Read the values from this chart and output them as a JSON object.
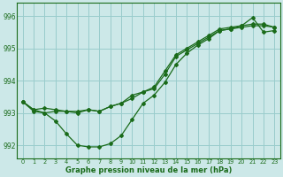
{
  "title": "Graphe pression niveau de la mer (hPa)",
  "bg_color": "#cce8e8",
  "grid_color": "#99cccc",
  "line_color": "#1a6b1a",
  "xlim": [
    -0.5,
    23.5
  ],
  "ylim": [
    991.6,
    996.4
  ],
  "ytick_values": [
    992,
    993,
    994,
    995,
    996
  ],
  "ytick_labels": [
    "992",
    "993",
    "994",
    "995",
    "996"
  ],
  "xticks": [
    0,
    1,
    2,
    3,
    4,
    5,
    6,
    7,
    8,
    9,
    10,
    11,
    12,
    13,
    14,
    15,
    16,
    17,
    18,
    19,
    20,
    21,
    22,
    23
  ],
  "series_main": [
    993.35,
    993.1,
    993.0,
    992.75,
    992.35,
    992.0,
    991.95,
    991.95,
    992.05,
    992.3,
    992.8,
    993.3,
    993.55,
    993.95,
    994.5,
    994.85,
    995.1,
    995.3,
    995.55,
    995.6,
    995.7,
    995.95,
    995.5,
    995.55
  ],
  "series_upper1": [
    993.35,
    993.1,
    993.15,
    993.1,
    993.05,
    993.05,
    993.1,
    993.05,
    993.2,
    993.3,
    993.45,
    993.65,
    993.75,
    994.2,
    994.75,
    994.95,
    995.15,
    995.35,
    995.55,
    995.6,
    995.65,
    995.7,
    995.7,
    995.65
  ],
  "series_upper2": [
    993.35,
    993.05,
    993.0,
    993.05,
    993.05,
    993.0,
    993.1,
    993.05,
    993.2,
    993.3,
    993.55,
    993.65,
    993.8,
    994.3,
    994.8,
    995.0,
    995.2,
    995.4,
    995.6,
    995.65,
    995.7,
    995.75,
    995.75,
    995.65
  ]
}
